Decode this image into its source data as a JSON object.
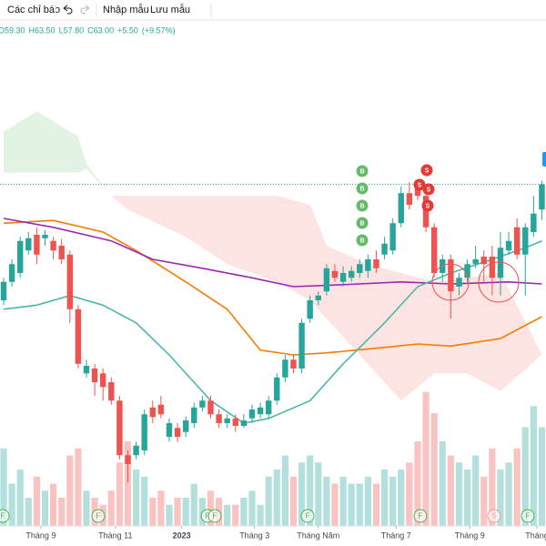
{
  "header": {
    "indicators": "Các chỉ báo",
    "load_template": "Nhập mẫu",
    "save_template": "Lưu mẫu",
    "ohlc": [
      "O59.30",
      "H63.50",
      "L57.80",
      "C63.00",
      "+5.50",
      "(+9.57%)"
    ]
  },
  "chart_data": {
    "type": "candlestick",
    "ylim": [
      10,
      90
    ],
    "vlim": [
      0,
      100
    ],
    "xlim": [
      -0.44,
      65.5
    ],
    "up_color": "#26a69a",
    "down_color": "#ef5350",
    "candles": [
      [
        46.0,
        49.3,
        45.3,
        48.7
      ],
      [
        48.7,
        52.0,
        48.0,
        51.3
      ],
      [
        50.0,
        55.3,
        49.3,
        54.7
      ],
      [
        53.3,
        56.0,
        52.7,
        55.1
      ],
      [
        55.6,
        56.7,
        51.3,
        52.7
      ],
      [
        55.1,
        56.3,
        54.0,
        55.6
      ],
      [
        54.7,
        55.3,
        52.0,
        53.3
      ],
      [
        54.0,
        55.0,
        51.3,
        52.0
      ],
      [
        52.7,
        53.3,
        42.7,
        44.7
      ],
      [
        44.7,
        45.3,
        36.0,
        36.7
      ],
      [
        35.3,
        37.3,
        34.7,
        36.4
      ],
      [
        36.0,
        36.7,
        32.0,
        34.0
      ],
      [
        35.3,
        36.0,
        31.3,
        33.3
      ],
      [
        34.0,
        34.7,
        30.7,
        31.3
      ],
      [
        31.3,
        32.0,
        22.7,
        23.3
      ],
      [
        23.3,
        24.0,
        19.3,
        22.0
      ],
      [
        23.3,
        25.3,
        22.7,
        24.7
      ],
      [
        24.0,
        30.0,
        23.3,
        29.3
      ],
      [
        30.3,
        31.3,
        28.0,
        28.9
      ],
      [
        30.7,
        32.0,
        28.7,
        29.3
      ],
      [
        26.0,
        28.7,
        25.3,
        28.0
      ],
      [
        27.3,
        28.0,
        25.3,
        26.0
      ],
      [
        26.7,
        29.0,
        26.0,
        28.4
      ],
      [
        28.0,
        31.0,
        27.3,
        30.3
      ],
      [
        30.3,
        32.0,
        29.7,
        31.3
      ],
      [
        31.3,
        32.0,
        28.7,
        29.3
      ],
      [
        29.3,
        30.0,
        27.3,
        28.0
      ],
      [
        28.0,
        29.3,
        27.3,
        28.7
      ],
      [
        28.7,
        29.3,
        26.7,
        27.6
      ],
      [
        27.6,
        29.3,
        27.3,
        28.4
      ],
      [
        28.7,
        30.7,
        28.0,
        30.0
      ],
      [
        29.3,
        31.0,
        28.7,
        30.3
      ],
      [
        29.3,
        32.0,
        28.7,
        31.3
      ],
      [
        31.3,
        35.3,
        30.7,
        34.7
      ],
      [
        34.7,
        38.0,
        34.0,
        37.3
      ],
      [
        37.3,
        38.0,
        35.3,
        36.0
      ],
      [
        36.0,
        43.3,
        35.3,
        42.7
      ],
      [
        43.3,
        46.7,
        42.7,
        46.0
      ],
      [
        46.0,
        47.3,
        45.3,
        46.7
      ],
      [
        47.3,
        51.3,
        46.7,
        50.7
      ],
      [
        50.3,
        51.3,
        48.7,
        49.3
      ],
      [
        48.7,
        51.0,
        48.0,
        50.0
      ],
      [
        49.3,
        51.0,
        48.7,
        50.3
      ],
      [
        50.0,
        52.0,
        49.3,
        51.3
      ],
      [
        50.3,
        52.7,
        49.3,
        52.0
      ],
      [
        52.0,
        53.3,
        50.0,
        50.7
      ],
      [
        52.7,
        55.3,
        52.0,
        54.3
      ],
      [
        53.3,
        58.0,
        52.7,
        57.3
      ],
      [
        57.3,
        62.7,
        56.7,
        61.7
      ],
      [
        61.7,
        63.3,
        59.3,
        60.0
      ],
      [
        62.7,
        63.3,
        60.7,
        61.3
      ],
      [
        61.3,
        62.0,
        56.0,
        56.7
      ],
      [
        56.7,
        57.3,
        49.3,
        50.0
      ],
      [
        50.0,
        52.7,
        48.7,
        52.0
      ],
      [
        52.0,
        52.7,
        43.3,
        47.3
      ],
      [
        48.0,
        50.0,
        46.7,
        49.3
      ],
      [
        49.3,
        52.0,
        48.7,
        51.3
      ],
      [
        51.3,
        54.0,
        50.7,
        52.0
      ],
      [
        52.4,
        53.3,
        48.7,
        51.3
      ],
      [
        52.4,
        54.0,
        46.7,
        49.3
      ],
      [
        49.3,
        56.0,
        46.7,
        53.7
      ],
      [
        53.3,
        56.0,
        52.7,
        54.7
      ],
      [
        56.7,
        58.0,
        52.0,
        52.7
      ],
      [
        52.7,
        57.3,
        46.7,
        56.7
      ],
      [
        56.0,
        61.3,
        55.3,
        58.7
      ],
      [
        59.3,
        63.5,
        57.8,
        63.0
      ]
    ],
    "volumes": [
      55,
      30,
      40,
      20,
      35,
      25,
      30,
      20,
      50,
      55,
      25,
      20,
      15,
      25,
      45,
      60,
      40,
      35,
      20,
      25,
      15,
      20,
      20,
      30,
      20,
      25,
      20,
      15,
      15,
      20,
      25,
      15,
      35,
      40,
      50,
      35,
      45,
      50,
      45,
      35,
      30,
      35,
      30,
      30,
      35,
      30,
      40,
      35,
      40,
      45,
      60,
      95,
      80,
      60,
      50,
      45,
      40,
      50,
      35,
      55,
      40,
      45,
      55,
      70,
      85,
      70
    ],
    "lines": [
      {
        "color": "#f57c00",
        "x": [
          0,
          6,
          12,
          16,
          22,
          27,
          31,
          35,
          39,
          46,
          50,
          54,
          60,
          65
        ],
        "values": [
          57.3,
          57.7,
          56.0,
          53.3,
          48.7,
          44.7,
          38.7,
          38.0,
          38.3,
          39.1,
          39.6,
          39.3,
          40.4,
          43.6
        ]
      },
      {
        "color": "#9c27b0",
        "x": [
          0,
          6,
          13,
          18,
          24,
          30,
          35,
          41,
          48,
          54,
          61,
          65
        ],
        "values": [
          58.0,
          56.7,
          54.7,
          52.0,
          50.7,
          49.3,
          48.0,
          48.3,
          48.7,
          48.4,
          48.7,
          48.4
        ]
      },
      {
        "color": "#4db6ac",
        "x": [
          0,
          4,
          8,
          12,
          16,
          20,
          25,
          29,
          32,
          37,
          41,
          46,
          50,
          54,
          59,
          63,
          65
        ],
        "values": [
          44.7,
          45.3,
          46.7,
          45.3,
          42.7,
          38.0,
          31.3,
          28.0,
          28.7,
          31.3,
          36.7,
          42.7,
          48.0,
          50.0,
          52.0,
          53.7,
          54.7
        ]
      }
    ],
    "cloud": {
      "up_color": "rgba(76,175,80,0.16)",
      "down_color": "rgba(244,67,54,0.15)",
      "x": [
        0,
        4,
        9,
        10,
        13,
        15,
        22,
        27,
        33,
        37,
        39,
        44,
        48,
        52,
        56,
        60,
        65
      ],
      "span_a": [
        70.7,
        73.7,
        70.0,
        66.0,
        61.3,
        59.3,
        55.3,
        51.3,
        48.7,
        46.0,
        43.3,
        36.7,
        31.3,
        35.3,
        35.3,
        32.7,
        38.0
      ],
      "span_b": [
        64.7,
        64.7,
        64.7,
        65.3,
        61.3,
        61.3,
        61.3,
        61.3,
        61.3,
        60.0,
        54.0,
        51.3,
        50.0,
        48.7,
        49.3,
        50.0,
        38.0
      ]
    },
    "last_price": 63.0,
    "signals": [
      "B",
      "B",
      "B",
      "B",
      "B",
      "S",
      "S",
      "S",
      "S"
    ],
    "events": [
      "F",
      "F",
      "F",
      "F",
      "F",
      "F",
      "S",
      "F"
    ],
    "xticks": [
      {
        "value": 4.5,
        "label": "Tháng 9"
      },
      {
        "value": 13.5,
        "label": "Tháng 11"
      },
      {
        "value": 21.5,
        "label": "2023"
      },
      {
        "value": 30.3,
        "label": "Tháng 3"
      },
      {
        "value": 38,
        "label": "Tháng Năm"
      },
      {
        "value": 47.4,
        "label": "Tháng 7"
      },
      {
        "value": 56.3,
        "label": "Tháng 9"
      },
      {
        "value": 64.4,
        "label": "Tháng"
      }
    ]
  }
}
